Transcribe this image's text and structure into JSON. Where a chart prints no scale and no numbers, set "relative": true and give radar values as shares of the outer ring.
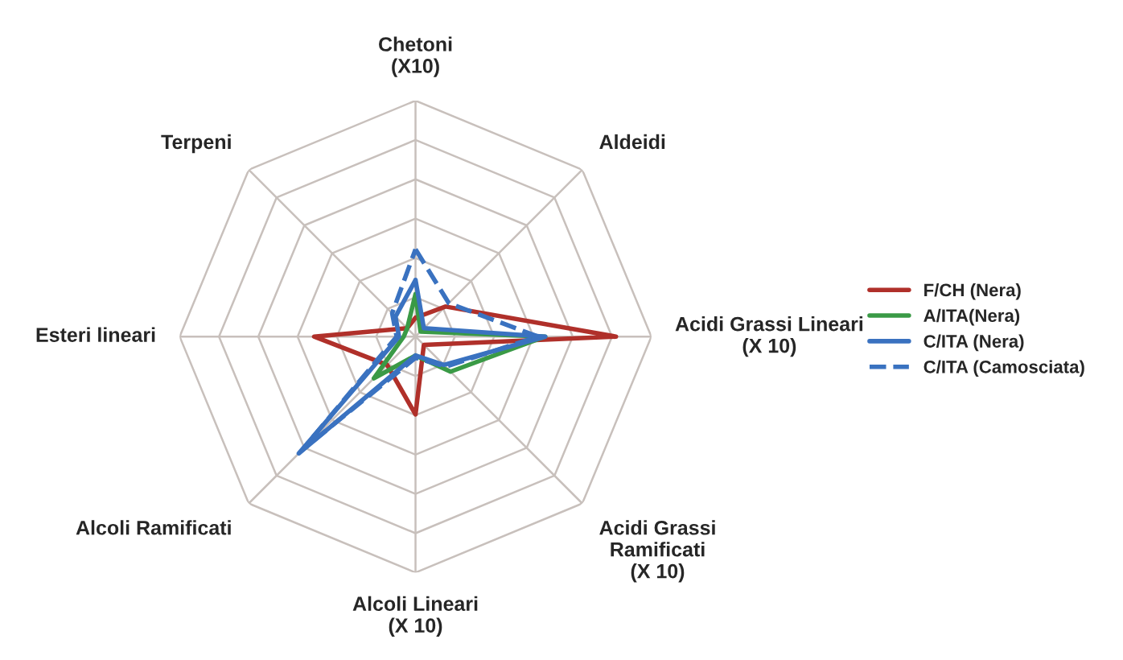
{
  "chart_data": {
    "type": "radar",
    "relative": true,
    "categories": [
      "Chetoni\n(X10)",
      "Aldeidi",
      "Acidi Grassi Lineari\n(X 10)",
      "Acidi Grassi\nRamificati\n(X 10)",
      "Alcoli Lineari\n(X 10)",
      "Alcoli Ramificati",
      "Esteri lineari",
      "Terpeni"
    ],
    "series": [
      {
        "name": "F/CH (Nera)",
        "color": "#b0302a",
        "values": [
          0.08,
          0.18,
          0.85,
          0.05,
          0.33,
          0.17,
          0.43,
          0.05
        ]
      },
      {
        "name": "A/ITA(Nera)",
        "color": "#3a9a46",
        "values": [
          0.18,
          0.03,
          0.55,
          0.21,
          0.08,
          0.25,
          0.05,
          0.05
        ]
      },
      {
        "name": "C/ITA (Nera)",
        "color": "#3a72c0",
        "values": [
          0.24,
          0.05,
          0.55,
          0.17,
          0.08,
          0.7,
          0.07,
          0.12
        ]
      },
      {
        "name": "C/ITA (Camosciata)",
        "color": "#3a72c0",
        "line_style": "dashed",
        "values": [
          0.37,
          0.2,
          0.52,
          0.18,
          0.09,
          0.68,
          0.08,
          0.14
        ]
      }
    ],
    "legend": "right",
    "grid": true
  }
}
